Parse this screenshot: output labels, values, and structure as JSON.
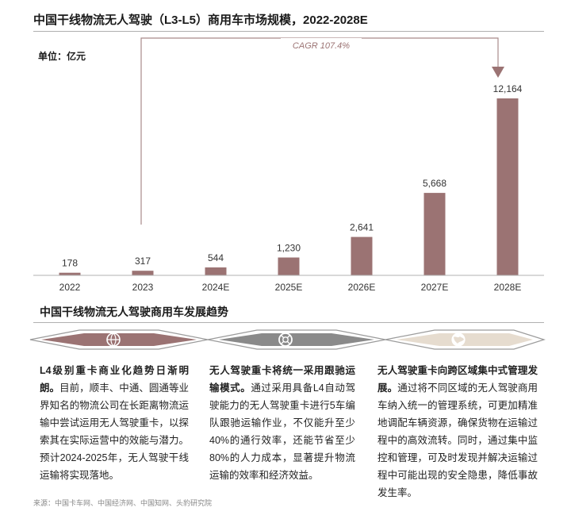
{
  "title": "中国干线物流无人驾驶（L3-L5）商用车市场规模，2022-2028E",
  "unit": "单位：亿元",
  "chart_data": {
    "type": "bar",
    "categories": [
      "2022",
      "2023",
      "2024E",
      "2025E",
      "2026E",
      "2027E",
      "2028E"
    ],
    "values": [
      178,
      317,
      544,
      1230,
      2641,
      5668,
      12164
    ],
    "value_labels": [
      "178",
      "317",
      "544",
      "1,230",
      "2,641",
      "5,668",
      "12,164"
    ],
    "ylim": [
      0,
      12164
    ],
    "bar_color": "#9b7373",
    "annotation": "CAGR 107.4%"
  },
  "section_title": "中国干线物流无人驾驶商用车发展趋势",
  "cards": [
    {
      "icon": "network-globe-icon",
      "color": "#9b7373",
      "heading": "L4级别重卡商业化趋势日渐明朗。",
      "body": "目前，顺丰、中通、圆通等业界知名的物流公司在长距离物流运输中尝试运用无人驾驶重卡，以探索其在实际运营中的效能与潜力。预计2024-2025年，无人驾驶干线运输将实现落地。"
    },
    {
      "icon": "lifebuoy-icon",
      "color": "#8a8a8a",
      "heading": "无人驾驶重卡将统一采用跟驰运输模式。",
      "body": "通过采用具备L4自动驾驶能力的无人驾驶重卡进行5车编队跟驰运输作业，不仅能升至少40%的通行效率，还能节省至少80%的人力成本，显著提升物流运输的效率和经济效益。"
    },
    {
      "icon": "globe-icon",
      "color": "#e6dccf",
      "heading": "无人驾驶重卡向跨区域集中式管理发展。",
      "body": "通过将不同区域的无人驾驶商用车纳入统一的管理系统，可更加精准地调配车辆资源，确保货物在运输过程中的高效流转。同时，通过集中监控和管理，可及时发现并解决运输过程中可能出现的安全隐患，降低事故发生率。"
    }
  ],
  "source": "来源：中国卡车网、中国经济网、中国知网、头豹研究院"
}
